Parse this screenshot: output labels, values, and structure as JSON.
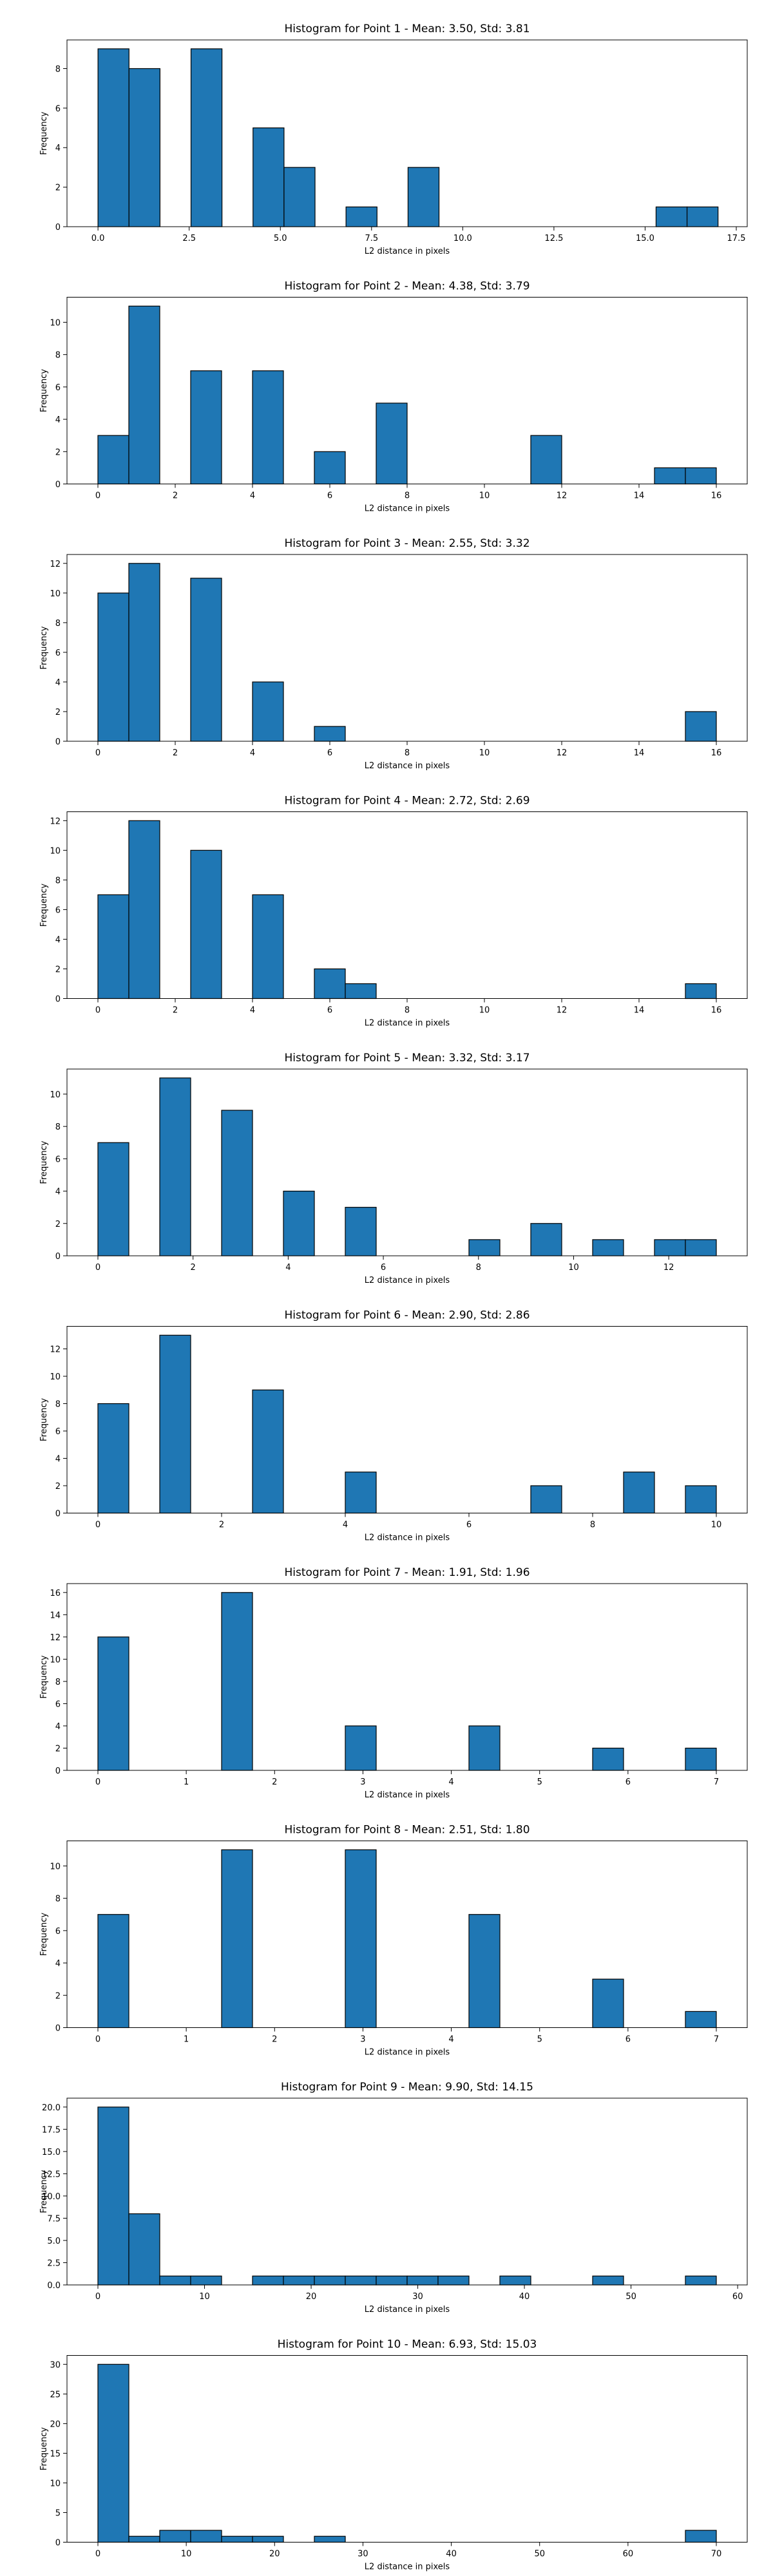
{
  "chart_data": [
    {
      "type": "bar",
      "title": "Histogram for Point 1 - Mean: 3.50, Std: 3.81",
      "xlabel": "L2 distance in pixels",
      "ylabel": "Frequency",
      "xlim": [
        -0.85,
        17.8
      ],
      "ylim": [
        0,
        9.45
      ],
      "xticks": [
        0.0,
        2.5,
        5.0,
        7.5,
        10.0,
        12.5,
        15.0,
        17.5
      ],
      "xtick_labels": [
        "0.0",
        "2.5",
        "5.0",
        "7.5",
        "10.0",
        "12.5",
        "15.0",
        "17.5"
      ],
      "yticks": [
        0,
        2,
        4,
        6,
        8
      ],
      "bin_edges": [
        0.0,
        0.85,
        1.7,
        2.55,
        3.4,
        4.25,
        5.1,
        5.95,
        6.8,
        7.65,
        8.5,
        9.35,
        10.2,
        11.05,
        11.9,
        12.75,
        13.6,
        14.45,
        15.3,
        16.15,
        17.0
      ],
      "values": [
        9,
        8,
        0,
        9,
        0,
        5,
        3,
        0,
        1,
        0,
        3,
        0,
        0,
        0,
        0,
        0,
        0,
        0,
        1,
        1
      ]
    },
    {
      "type": "bar",
      "title": "Histogram for Point 2 - Mean: 4.38, Std: 3.79",
      "xlabel": "L2 distance in pixels",
      "ylabel": "Frequency",
      "xlim": [
        -0.8,
        16.8
      ],
      "ylim": [
        0,
        11.55
      ],
      "xticks": [
        0,
        2,
        4,
        6,
        8,
        10,
        12,
        14,
        16
      ],
      "xtick_labels": [
        "0",
        "2",
        "4",
        "6",
        "8",
        "10",
        "12",
        "14",
        "16"
      ],
      "yticks": [
        0,
        2,
        4,
        6,
        8,
        10
      ],
      "bin_edges": [
        0.0,
        0.8,
        1.6,
        2.4,
        3.2,
        4.0,
        4.8,
        5.6,
        6.4,
        7.2,
        8.0,
        8.8,
        9.6,
        10.4,
        11.2,
        12.0,
        12.8,
        13.6,
        14.4,
        15.2,
        16.0
      ],
      "values": [
        3,
        11,
        0,
        7,
        0,
        7,
        0,
        2,
        0,
        5,
        0,
        0,
        0,
        0,
        3,
        0,
        0,
        0,
        1,
        1
      ]
    },
    {
      "type": "bar",
      "title": "Histogram for Point 3 - Mean: 2.55, Std: 3.32",
      "xlabel": "L2 distance in pixels",
      "ylabel": "Frequency",
      "xlim": [
        -0.8,
        16.8
      ],
      "ylim": [
        0,
        12.6
      ],
      "xticks": [
        0,
        2,
        4,
        6,
        8,
        10,
        12,
        14,
        16
      ],
      "xtick_labels": [
        "0",
        "2",
        "4",
        "6",
        "8",
        "10",
        "12",
        "14",
        "16"
      ],
      "yticks": [
        0,
        2,
        4,
        6,
        8,
        10,
        12
      ],
      "bin_edges": [
        0.0,
        0.8,
        1.6,
        2.4,
        3.2,
        4.0,
        4.8,
        5.6,
        6.4,
        7.2,
        8.0,
        8.8,
        9.6,
        10.4,
        11.2,
        12.0,
        12.8,
        13.6,
        14.4,
        15.2,
        16.0
      ],
      "values": [
        10,
        12,
        0,
        11,
        0,
        4,
        0,
        1,
        0,
        0,
        0,
        0,
        0,
        0,
        0,
        0,
        0,
        0,
        0,
        2
      ]
    },
    {
      "type": "bar",
      "title": "Histogram for Point 4 - Mean: 2.72, Std: 2.69",
      "xlabel": "L2 distance in pixels",
      "ylabel": "Frequency",
      "xlim": [
        -0.8,
        16.8
      ],
      "ylim": [
        0,
        12.6
      ],
      "xticks": [
        0,
        2,
        4,
        6,
        8,
        10,
        12,
        14,
        16
      ],
      "xtick_labels": [
        "0",
        "2",
        "4",
        "6",
        "8",
        "10",
        "12",
        "14",
        "16"
      ],
      "yticks": [
        0,
        2,
        4,
        6,
        8,
        10,
        12
      ],
      "bin_edges": [
        0.0,
        0.8,
        1.6,
        2.4,
        3.2,
        4.0,
        4.8,
        5.6,
        6.4,
        7.2,
        8.0,
        8.8,
        9.6,
        10.4,
        11.2,
        12.0,
        12.8,
        13.6,
        14.4,
        15.2,
        16.0
      ],
      "values": [
        7,
        12,
        0,
        10,
        0,
        7,
        0,
        2,
        1,
        0,
        0,
        0,
        0,
        0,
        0,
        0,
        0,
        0,
        0,
        1
      ]
    },
    {
      "type": "bar",
      "title": "Histogram for Point 5 - Mean: 3.32, Std: 3.17",
      "xlabel": "L2 distance in pixels",
      "ylabel": "Frequency",
      "xlim": [
        -0.65,
        13.65
      ],
      "ylim": [
        0,
        11.55
      ],
      "xticks": [
        0,
        2,
        4,
        6,
        8,
        10,
        12
      ],
      "xtick_labels": [
        "0",
        "2",
        "4",
        "6",
        "8",
        "10",
        "12"
      ],
      "yticks": [
        0,
        2,
        4,
        6,
        8,
        10
      ],
      "bin_edges": [
        0.0,
        0.65,
        1.3,
        1.95,
        2.6,
        3.25,
        3.9,
        4.55,
        5.2,
        5.85,
        6.5,
        7.15,
        7.8,
        8.45,
        9.1,
        9.75,
        10.4,
        11.05,
        11.7,
        12.35,
        13.0
      ],
      "values": [
        7,
        0,
        11,
        0,
        9,
        0,
        4,
        0,
        3,
        0,
        0,
        0,
        1,
        0,
        2,
        0,
        1,
        0,
        1,
        1
      ]
    },
    {
      "type": "bar",
      "title": "Histogram for Point 6 - Mean: 2.90, Std: 2.86",
      "xlabel": "L2 distance in pixels",
      "ylabel": "Frequency",
      "xlim": [
        -0.5,
        10.5
      ],
      "ylim": [
        0,
        13.65
      ],
      "xticks": [
        0,
        2,
        4,
        6,
        8,
        10
      ],
      "xtick_labels": [
        "0",
        "2",
        "4",
        "6",
        "8",
        "10"
      ],
      "yticks": [
        0,
        2,
        4,
        6,
        8,
        10,
        12
      ],
      "bin_edges": [
        0.0,
        0.5,
        1.0,
        1.5,
        2.0,
        2.5,
        3.0,
        3.5,
        4.0,
        4.5,
        5.0,
        5.5,
        6.0,
        6.5,
        7.0,
        7.5,
        8.0,
        8.5,
        9.0,
        9.5,
        10.0
      ],
      "values": [
        8,
        0,
        13,
        0,
        0,
        9,
        0,
        0,
        3,
        0,
        0,
        0,
        0,
        0,
        2,
        0,
        0,
        3,
        0,
        2
      ]
    },
    {
      "type": "bar",
      "title": "Histogram for Point 7 - Mean: 1.91, Std: 1.96",
      "xlabel": "L2 distance in pixels",
      "ylabel": "Frequency",
      "xlim": [
        -0.35,
        7.35
      ],
      "ylim": [
        0,
        16.8
      ],
      "xticks": [
        0,
        1,
        2,
        3,
        4,
        5,
        6,
        7
      ],
      "xtick_labels": [
        "0",
        "1",
        "2",
        "3",
        "4",
        "5",
        "6",
        "7"
      ],
      "yticks": [
        0,
        2,
        4,
        6,
        8,
        10,
        12,
        14,
        16
      ],
      "bin_edges": [
        0.0,
        0.35,
        0.7,
        1.05,
        1.4,
        1.75,
        2.1,
        2.45,
        2.8,
        3.15,
        3.5,
        3.85,
        4.2,
        4.55,
        4.9,
        5.25,
        5.6,
        5.95,
        6.3,
        6.65,
        7.0
      ],
      "values": [
        12,
        0,
        0,
        0,
        16,
        0,
        0,
        0,
        4,
        0,
        0,
        0,
        4,
        0,
        0,
        0,
        2,
        0,
        0,
        2
      ]
    },
    {
      "type": "bar",
      "title": "Histogram for Point 8 - Mean: 2.51, Std: 1.80",
      "xlabel": "L2 distance in pixels",
      "ylabel": "Frequency",
      "xlim": [
        -0.35,
        7.35
      ],
      "ylim": [
        0,
        11.55
      ],
      "xticks": [
        0,
        1,
        2,
        3,
        4,
        5,
        6,
        7
      ],
      "xtick_labels": [
        "0",
        "1",
        "2",
        "3",
        "4",
        "5",
        "6",
        "7"
      ],
      "yticks": [
        0,
        2,
        4,
        6,
        8,
        10
      ],
      "bin_edges": [
        0.0,
        0.35,
        0.7,
        1.05,
        1.4,
        1.75,
        2.1,
        2.45,
        2.8,
        3.15,
        3.5,
        3.85,
        4.2,
        4.55,
        4.9,
        5.25,
        5.6,
        5.95,
        6.3,
        6.65,
        7.0
      ],
      "values": [
        7,
        0,
        0,
        0,
        11,
        0,
        0,
        0,
        11,
        0,
        0,
        0,
        7,
        0,
        0,
        0,
        3,
        0,
        0,
        1
      ]
    },
    {
      "type": "bar",
      "title": "Histogram for Point 9 - Mean: 9.90, Std: 14.15",
      "xlabel": "L2 distance in pixels",
      "ylabel": "Frequency",
      "xlim": [
        -2.9,
        60.9
      ],
      "ylim": [
        0,
        21.0
      ],
      "xticks": [
        0,
        10,
        20,
        30,
        40,
        50,
        60
      ],
      "xtick_labels": [
        "0",
        "10",
        "20",
        "30",
        "40",
        "50",
        "60"
      ],
      "yticks": [
        0.0,
        2.5,
        5.0,
        7.5,
        10.0,
        12.5,
        15.0,
        17.5,
        20.0
      ],
      "ytick_labels": [
        "0.0",
        "2.5",
        "5.0",
        "7.5",
        "10.0",
        "12.5",
        "15.0",
        "17.5",
        "20.0"
      ],
      "bin_edges": [
        0.0,
        2.9,
        5.8,
        8.7,
        11.6,
        14.5,
        17.4,
        20.3,
        23.2,
        26.1,
        29.0,
        31.9,
        34.8,
        37.7,
        40.6,
        43.5,
        46.4,
        49.3,
        52.2,
        55.1,
        58.0
      ],
      "values": [
        20,
        8,
        1,
        1,
        0,
        1,
        1,
        1,
        1,
        1,
        1,
        1,
        0,
        1,
        0,
        0,
        1,
        0,
        0,
        1
      ]
    },
    {
      "type": "bar",
      "title": "Histogram for Point 10 - Mean: 6.93, Std: 15.03",
      "xlabel": "L2 distance in pixels",
      "ylabel": "Frequency",
      "xlim": [
        -3.5,
        73.5
      ],
      "ylim": [
        0,
        31.5
      ],
      "xticks": [
        0,
        10,
        20,
        30,
        40,
        50,
        60,
        70
      ],
      "xtick_labels": [
        "0",
        "10",
        "20",
        "30",
        "40",
        "50",
        "60",
        "70"
      ],
      "yticks": [
        0,
        5,
        10,
        15,
        20,
        25,
        30
      ],
      "bin_edges": [
        0.0,
        3.5,
        7.0,
        10.5,
        14.0,
        17.5,
        21.0,
        24.5,
        28.0,
        31.5,
        35.0,
        38.5,
        42.0,
        45.5,
        49.0,
        52.5,
        56.0,
        59.5,
        63.0,
        66.5,
        70.0
      ],
      "values": [
        30,
        1,
        2,
        2,
        1,
        1,
        0,
        1,
        0,
        0,
        0,
        0,
        0,
        0,
        0,
        0,
        0,
        0,
        0,
        2
      ]
    }
  ],
  "colors": {
    "bar_fill": "#1f77b4",
    "bar_edge": "#000000",
    "axis": "#000000"
  }
}
